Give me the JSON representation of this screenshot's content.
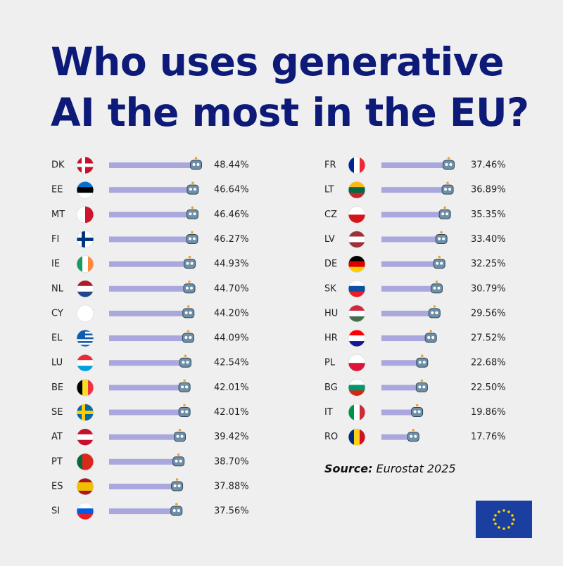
{
  "title": "Who uses generative AI the most in the EU?",
  "source": {
    "label": "Source:",
    "text": "Eurostat 2025"
  },
  "chart_data": [
    {
      "type": "bar",
      "color": "#a9a7dd",
      "categories": [
        "DK",
        "EE",
        "MT",
        "FI",
        "IE",
        "NL",
        "CY",
        "EL",
        "LU",
        "BE",
        "SE",
        "AT",
        "PT",
        "ES",
        "SI"
      ],
      "values": [
        48.44,
        46.64,
        46.46,
        46.27,
        44.93,
        44.7,
        44.2,
        44.09,
        42.54,
        42.01,
        42.01,
        39.42,
        38.7,
        37.88,
        37.56
      ],
      "value_labels": [
        "48.44%",
        "46.64%",
        "46.46%",
        "46.27%",
        "44.93%",
        "44.70%",
        "44.20%",
        "44.09%",
        "42.54%",
        "42.01%",
        "42.01%",
        "39.42%",
        "38.70%",
        "37.88%",
        "37.56%"
      ]
    },
    {
      "type": "bar",
      "color": "#a9a7dd",
      "categories": [
        "FR",
        "LT",
        "CZ",
        "LV",
        "DE",
        "SK",
        "HU",
        "HR",
        "PL",
        "BG",
        "IT",
        "RO"
      ],
      "values": [
        37.46,
        36.89,
        35.35,
        33.4,
        32.25,
        30.79,
        29.56,
        27.52,
        22.68,
        22.5,
        19.86,
        17.76
      ],
      "value_labels": [
        "37.46%",
        "36.89%",
        "35.35%",
        "33.40%",
        "32.25%",
        "30.79%",
        "29.56%",
        "27.52%",
        "22.68%",
        "22.50%",
        "19.86%",
        "17.76%"
      ]
    }
  ]
}
